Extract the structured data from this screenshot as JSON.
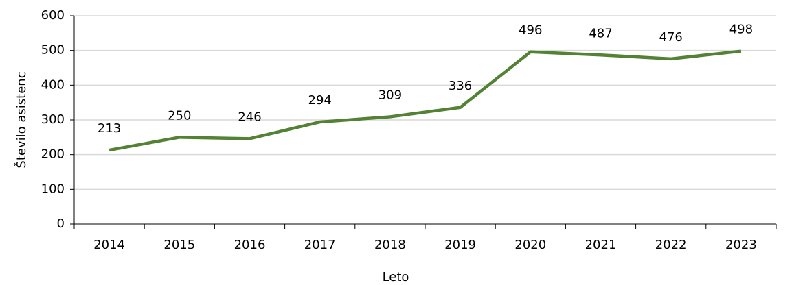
{
  "chart_data": {
    "type": "line",
    "categories": [
      "2014",
      "2015",
      "2016",
      "2017",
      "2018",
      "2019",
      "2020",
      "2021",
      "2022",
      "2023"
    ],
    "series": [
      {
        "name": "Število asistenc",
        "color": "#548235",
        "values": [
          213,
          250,
          246,
          294,
          309,
          336,
          496,
          487,
          476,
          498
        ]
      }
    ],
    "x_label": "Leto",
    "y_label": "Število asistenc",
    "ylim": [
      0,
      600
    ],
    "yticks": [
      0,
      100,
      200,
      300,
      400,
      500,
      600
    ],
    "grid": true
  }
}
